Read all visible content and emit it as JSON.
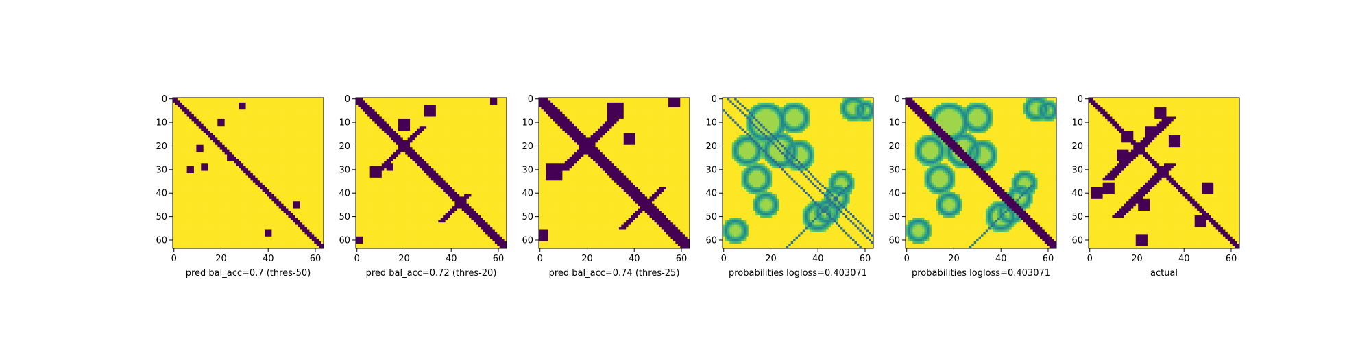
{
  "figure": {
    "background": "#ffffff",
    "panel_count": 6
  },
  "colors": {
    "viridis_low": "#440154",
    "viridis_high": "#fde725",
    "axis": "#000000"
  },
  "chart_data": [
    {
      "type": "heatmap",
      "title": "",
      "xlabel": "pred bal_acc=0.7 (thres-50)",
      "ylabel": "",
      "colormap": "viridis",
      "matrix_size": 64,
      "x_ticks": [
        0,
        20,
        40,
        60
      ],
      "y_ticks": [
        0,
        10,
        20,
        30,
        40,
        50,
        60
      ],
      "value_range": [
        0,
        1
      ],
      "description_of_pattern": "binary prediction: narrow main diagonal band",
      "features": {
        "diag_width": 2,
        "anti_diag": [],
        "spots": [
          [
            29,
            3,
            1
          ],
          [
            11,
            21,
            1
          ],
          [
            7,
            30,
            1
          ],
          [
            40,
            57,
            1
          ],
          [
            52,
            45,
            1
          ],
          [
            24,
            25,
            1
          ],
          [
            13,
            29,
            1
          ],
          [
            20,
            10,
            1
          ]
        ]
      }
    },
    {
      "type": "heatmap",
      "title": "",
      "xlabel": "pred bal_acc=0.72 (thres-20)",
      "ylabel": "",
      "colormap": "viridis",
      "matrix_size": 64,
      "x_ticks": [
        0,
        20,
        40,
        60
      ],
      "y_ticks": [
        0,
        10,
        20,
        30,
        40,
        50,
        60
      ],
      "value_range": [
        0,
        1
      ],
      "features": {
        "diag_width": 3,
        "anti_diag": [
          {
            "c": 40,
            "from": 12,
            "to": 30,
            "w": 1
          },
          {
            "c": 88,
            "from": 41,
            "to": 52,
            "w": 1
          }
        ],
        "spots": [
          [
            31,
            5,
            2
          ],
          [
            58,
            1,
            1
          ],
          [
            8,
            31,
            2
          ],
          [
            1,
            60,
            1
          ],
          [
            20,
            11,
            2
          ],
          [
            14,
            29,
            1
          ]
        ]
      }
    },
    {
      "type": "heatmap",
      "title": "",
      "xlabel": "pred bal_acc=0.74 (thres-25)",
      "ylabel": "",
      "colormap": "viridis",
      "matrix_size": 64,
      "x_ticks": [
        0,
        20,
        40,
        60
      ],
      "y_ticks": [
        0,
        10,
        20,
        30,
        40,
        50,
        60
      ],
      "value_range": [
        0,
        1
      ],
      "features": {
        "diag_width": 4,
        "anti_diag": [
          {
            "c": 40,
            "from": 8,
            "to": 30,
            "w": 2
          },
          {
            "c": 90,
            "from": 38,
            "to": 55,
            "w": 1
          }
        ],
        "spots": [
          [
            32,
            5,
            3
          ],
          [
            57,
            1,
            2
          ],
          [
            6,
            31,
            3
          ],
          [
            1,
            58,
            2
          ],
          [
            38,
            17,
            2
          ]
        ]
      }
    },
    {
      "type": "heatmap",
      "title": "",
      "xlabel": "probabilities logloss=0.403071",
      "ylabel": "",
      "colormap": "viridis",
      "matrix_size": 64,
      "x_ticks": [
        0,
        20,
        40,
        60
      ],
      "y_ticks": [
        0,
        10,
        20,
        30,
        40,
        50,
        60
      ],
      "value_range": [
        0,
        1
      ],
      "features": {
        "soft": true,
        "blobs": [
          [
            18,
            10,
            7
          ],
          [
            30,
            8,
            5
          ],
          [
            10,
            22,
            5
          ],
          [
            24,
            22,
            6
          ],
          [
            14,
            34,
            5
          ],
          [
            32,
            24,
            5
          ],
          [
            55,
            4,
            4
          ],
          [
            60,
            5,
            3
          ],
          [
            5,
            56,
            4
          ],
          [
            18,
            45,
            4
          ],
          [
            44,
            48,
            4
          ],
          [
            50,
            36,
            4
          ],
          [
            40,
            50,
            5
          ],
          [
            48,
            42,
            4
          ]
        ],
        "lines": [
          {
            "offset": 5
          },
          {
            "offset": -5
          },
          {
            "offset": 2
          },
          {
            "anti": 90
          }
        ]
      }
    },
    {
      "type": "heatmap",
      "title": "",
      "xlabel": "probabilities logloss=0.403071",
      "ylabel": "",
      "colormap": "viridis",
      "matrix_size": 64,
      "x_ticks": [
        0,
        20,
        40,
        60
      ],
      "y_ticks": [
        0,
        10,
        20,
        30,
        40,
        50,
        60
      ],
      "value_range": [
        0,
        1
      ],
      "features": {
        "soft": true,
        "diag_width": 3,
        "blobs": [
          [
            18,
            10,
            7
          ],
          [
            30,
            8,
            5
          ],
          [
            10,
            22,
            5
          ],
          [
            24,
            22,
            6
          ],
          [
            14,
            34,
            5
          ],
          [
            32,
            24,
            5
          ],
          [
            55,
            4,
            4
          ],
          [
            60,
            5,
            3
          ],
          [
            5,
            56,
            4
          ],
          [
            18,
            45,
            4
          ],
          [
            44,
            48,
            4
          ],
          [
            50,
            36,
            4
          ],
          [
            40,
            50,
            5
          ],
          [
            48,
            42,
            4
          ]
        ],
        "lines": [
          {
            "anti": 90
          }
        ]
      }
    },
    {
      "type": "heatmap",
      "title": "",
      "xlabel": "actual",
      "ylabel": "",
      "colormap": "viridis",
      "matrix_size": 64,
      "x_ticks": [
        0,
        20,
        40,
        60
      ],
      "y_ticks": [
        0,
        10,
        20,
        30,
        40,
        50,
        60
      ],
      "value_range": [
        0,
        1
      ],
      "features": {
        "diag_width": 2,
        "anti_diag": [
          {
            "c": 42,
            "from": 8,
            "to": 34,
            "w": 2
          },
          {
            "c": 62,
            "from": 28,
            "to": 50,
            "w": 2
          }
        ],
        "spots": [
          [
            16,
            16,
            2
          ],
          [
            30,
            6,
            2
          ],
          [
            8,
            38,
            2
          ],
          [
            22,
            60,
            2
          ],
          [
            14,
            24,
            2
          ],
          [
            3,
            40,
            2
          ],
          [
            50,
            38,
            2
          ],
          [
            47,
            52,
            2
          ],
          [
            36,
            18,
            2
          ],
          [
            23,
            45,
            2
          ],
          [
            26,
            14,
            2
          ]
        ]
      }
    }
  ]
}
